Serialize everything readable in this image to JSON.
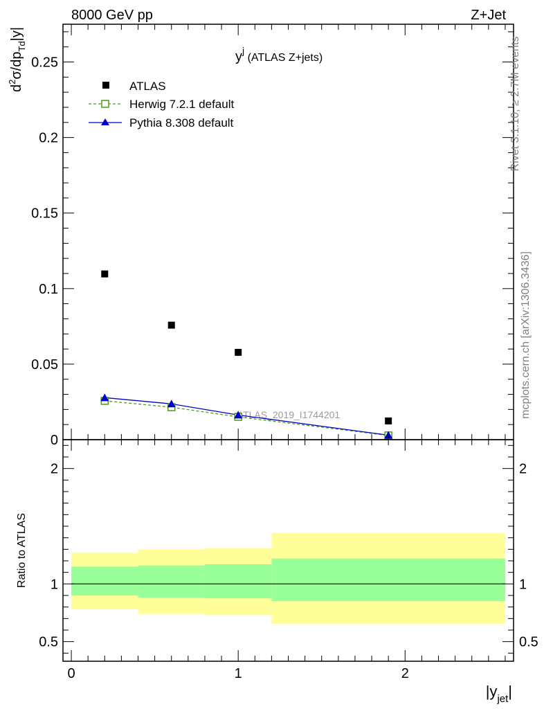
{
  "header": {
    "left": "8000 GeV pp",
    "right": "Z+Jet"
  },
  "plot_title": {
    "main": "y",
    "sup": "j",
    "suffix": " (ATLAS Z+jets)"
  },
  "watermark": "ATLAS_2019_I1744201",
  "side_labels": {
    "rivet": "Rivet 3.1.10, ≥ 2.7M events",
    "mcplots": "mcplots.cern.ch [arXiv:1306.3436]"
  },
  "colors": {
    "atlas": "#000000",
    "herwig": "#4a9a1a",
    "pythia": "#0000cc",
    "band_inner": "#99ff99",
    "band_outer": "#ffff99"
  },
  "chart_data": [
    {
      "type": "scatter",
      "panel": "main",
      "ylabel": {
        "base": "d",
        "sup": "2",
        "mid": "σ/dp",
        "sub": "Td",
        "end": "|y|"
      },
      "xlim": [
        -0.05,
        2.65
      ],
      "ylim": [
        0,
        0.275
      ],
      "y_ticks": [
        {
          "value": 0,
          "label": "0"
        },
        {
          "value": 0.05,
          "label": "0.05"
        },
        {
          "value": 0.1,
          "label": "0.1"
        },
        {
          "value": 0.15,
          "label": "0.15"
        },
        {
          "value": 0.2,
          "label": "0.2"
        },
        {
          "value": 0.25,
          "label": "0.25"
        }
      ],
      "legend_placement": "top-left",
      "series": [
        {
          "name": "ATLAS",
          "marker": "square-filled",
          "x": [
            0.2,
            0.6,
            1.0,
            1.9
          ],
          "y": [
            0.1097,
            0.0758,
            0.0578,
            0.0124
          ]
        },
        {
          "name": "Herwig 7.2.1 default",
          "marker": "square-open",
          "line": "dashed",
          "x": [
            0.2,
            0.6,
            1.0,
            1.9
          ],
          "y": [
            0.0257,
            0.0215,
            0.0151,
            0.0028
          ]
        },
        {
          "name": "Pythia 8.308 default",
          "marker": "triangle-filled",
          "line": "solid",
          "x": [
            0.2,
            0.6,
            1.0,
            1.9
          ],
          "y": [
            0.0278,
            0.0237,
            0.0163,
            0.003
          ]
        }
      ]
    },
    {
      "type": "area",
      "panel": "ratio",
      "ylabel": "Ratio to ATLAS",
      "xlabel": {
        "base": "|y",
        "sub": "jet",
        "end": "|"
      },
      "xlim": [
        -0.05,
        2.65
      ],
      "ylim": [
        0.33,
        2.25
      ],
      "x_ticks": [
        {
          "value": 0,
          "label": "0"
        },
        {
          "value": 1,
          "label": "1"
        },
        {
          "value": 2,
          "label": "2"
        }
      ],
      "y_ticks": [
        {
          "value": 0.5,
          "label": "0.5"
        },
        {
          "value": 1,
          "label": "1"
        },
        {
          "value": 2,
          "label": "2"
        }
      ],
      "reference_line": 1,
      "bins": [
        {
          "x0": 0.0,
          "x1": 0.4,
          "inner": [
            0.9,
            1.15
          ],
          "outer": [
            0.78,
            1.27
          ]
        },
        {
          "x0": 0.4,
          "x1": 0.8,
          "inner": [
            0.88,
            1.16
          ],
          "outer": [
            0.74,
            1.3
          ]
        },
        {
          "x0": 0.8,
          "x1": 1.2,
          "inner": [
            0.875,
            1.17
          ],
          "outer": [
            0.73,
            1.31
          ]
        },
        {
          "x0": 1.2,
          "x1": 2.6,
          "inner": [
            0.85,
            1.22
          ],
          "outer": [
            0.655,
            1.44
          ]
        }
      ]
    }
  ]
}
